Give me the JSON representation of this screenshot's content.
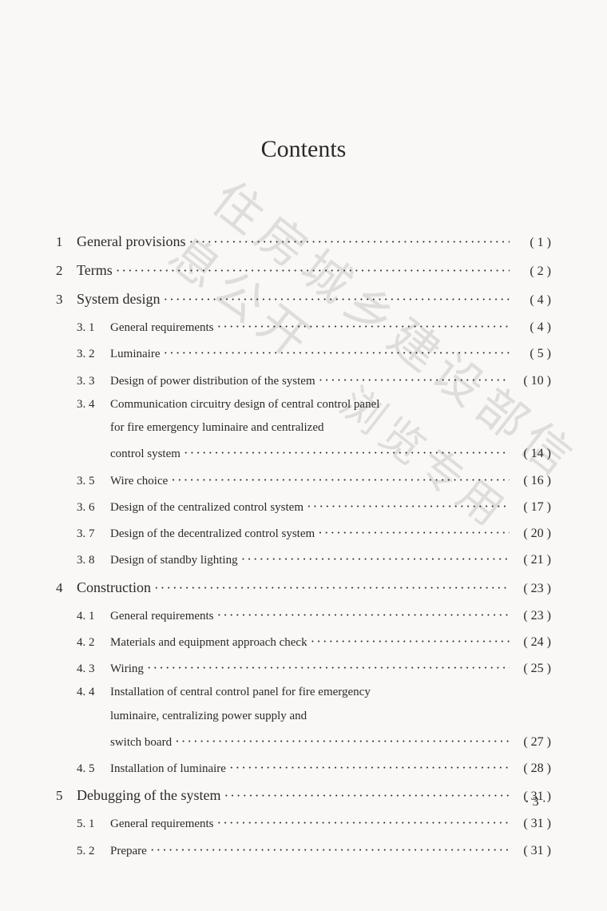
{
  "title": "Contents",
  "leader_fill": "····················································································",
  "page_number_display": "· 3 ·",
  "watermarks": {
    "w1": "住房城乡建设部信息公开",
    "w2": "浏览专用"
  },
  "text_color": "#2a2a2a",
  "background_color": "#f9f8f6",
  "watermark_color": "#c9c7c4",
  "font_family": "Times New Roman / SimSun serif",
  "title_fontsize_pt": 22,
  "main_entry_fontsize_pt": 13,
  "sub_entry_fontsize_pt": 11,
  "entries": [
    {
      "type": "main",
      "num": "1",
      "label": "General provisions",
      "page": "( 1 )"
    },
    {
      "type": "main",
      "num": "2",
      "label": "Terms",
      "page": "( 2 )"
    },
    {
      "type": "main",
      "num": "3",
      "label": "System design",
      "page": "( 4 )"
    },
    {
      "type": "sub",
      "num": "3. 1",
      "label": "General requirements",
      "page": "( 4 )"
    },
    {
      "type": "sub",
      "num": "3. 2",
      "label": "Luminaire",
      "page": "( 5 )"
    },
    {
      "type": "sub",
      "num": "3. 3",
      "label": "Design of power distribution of the system",
      "page": "( 10 )"
    },
    {
      "type": "sub",
      "num": "3. 4",
      "label": "Communication circuitry design of central control panel",
      "cont": [
        "for fire emergency luminaire and centralized",
        "control system"
      ],
      "page": "( 14 )"
    },
    {
      "type": "sub",
      "num": "3. 5",
      "label": "Wire choice",
      "page": "( 16 )"
    },
    {
      "type": "sub",
      "num": "3. 6",
      "label": "Design of the centralized control system",
      "page": "( 17 )"
    },
    {
      "type": "sub",
      "num": "3. 7",
      "label": "Design of the decentralized control system",
      "page": "( 20 )"
    },
    {
      "type": "sub",
      "num": "3. 8",
      "label": "Design of standby lighting",
      "page": "( 21 )"
    },
    {
      "type": "main",
      "num": "4",
      "label": "Construction",
      "page": "( 23 )"
    },
    {
      "type": "sub",
      "num": "4. 1",
      "label": "General requirements",
      "page": "( 23 )"
    },
    {
      "type": "sub",
      "num": "4. 2",
      "label": "Materials and equipment approach check",
      "page": "( 24 )"
    },
    {
      "type": "sub",
      "num": "4. 3",
      "label": "Wiring",
      "page": "( 25 )"
    },
    {
      "type": "sub",
      "num": "4. 4",
      "label": "Installation of central control panel for fire emergency",
      "cont": [
        "luminaire, centralizing power supply and",
        "switch board"
      ],
      "page": "( 27 )"
    },
    {
      "type": "sub",
      "num": "4. 5",
      "label": "Installation of luminaire",
      "page": "( 28 )"
    },
    {
      "type": "main",
      "num": "5",
      "label": "Debugging of the system",
      "page": "( 31 )"
    },
    {
      "type": "sub",
      "num": "5. 1",
      "label": "General requirements",
      "page": "( 31 )"
    },
    {
      "type": "sub",
      "num": "5. 2",
      "label": "Prepare",
      "page": "( 31 )"
    }
  ]
}
